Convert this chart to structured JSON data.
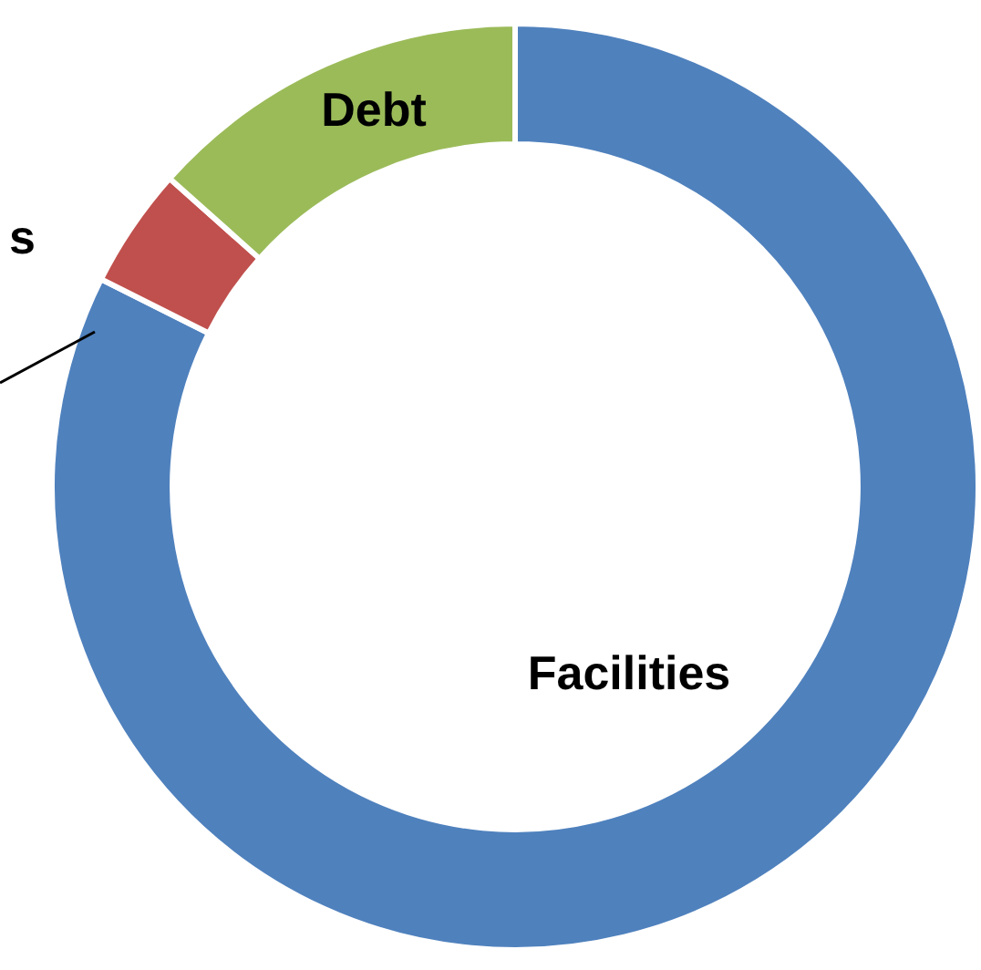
{
  "chart_data": {
    "type": "donut",
    "categories": [
      "Facilities",
      "s",
      "Debt"
    ],
    "values": [
      82.4,
      4.2,
      13.4
    ],
    "colors": [
      "#4f81bd",
      "#c0504d",
      "#9bbb59"
    ]
  }
}
